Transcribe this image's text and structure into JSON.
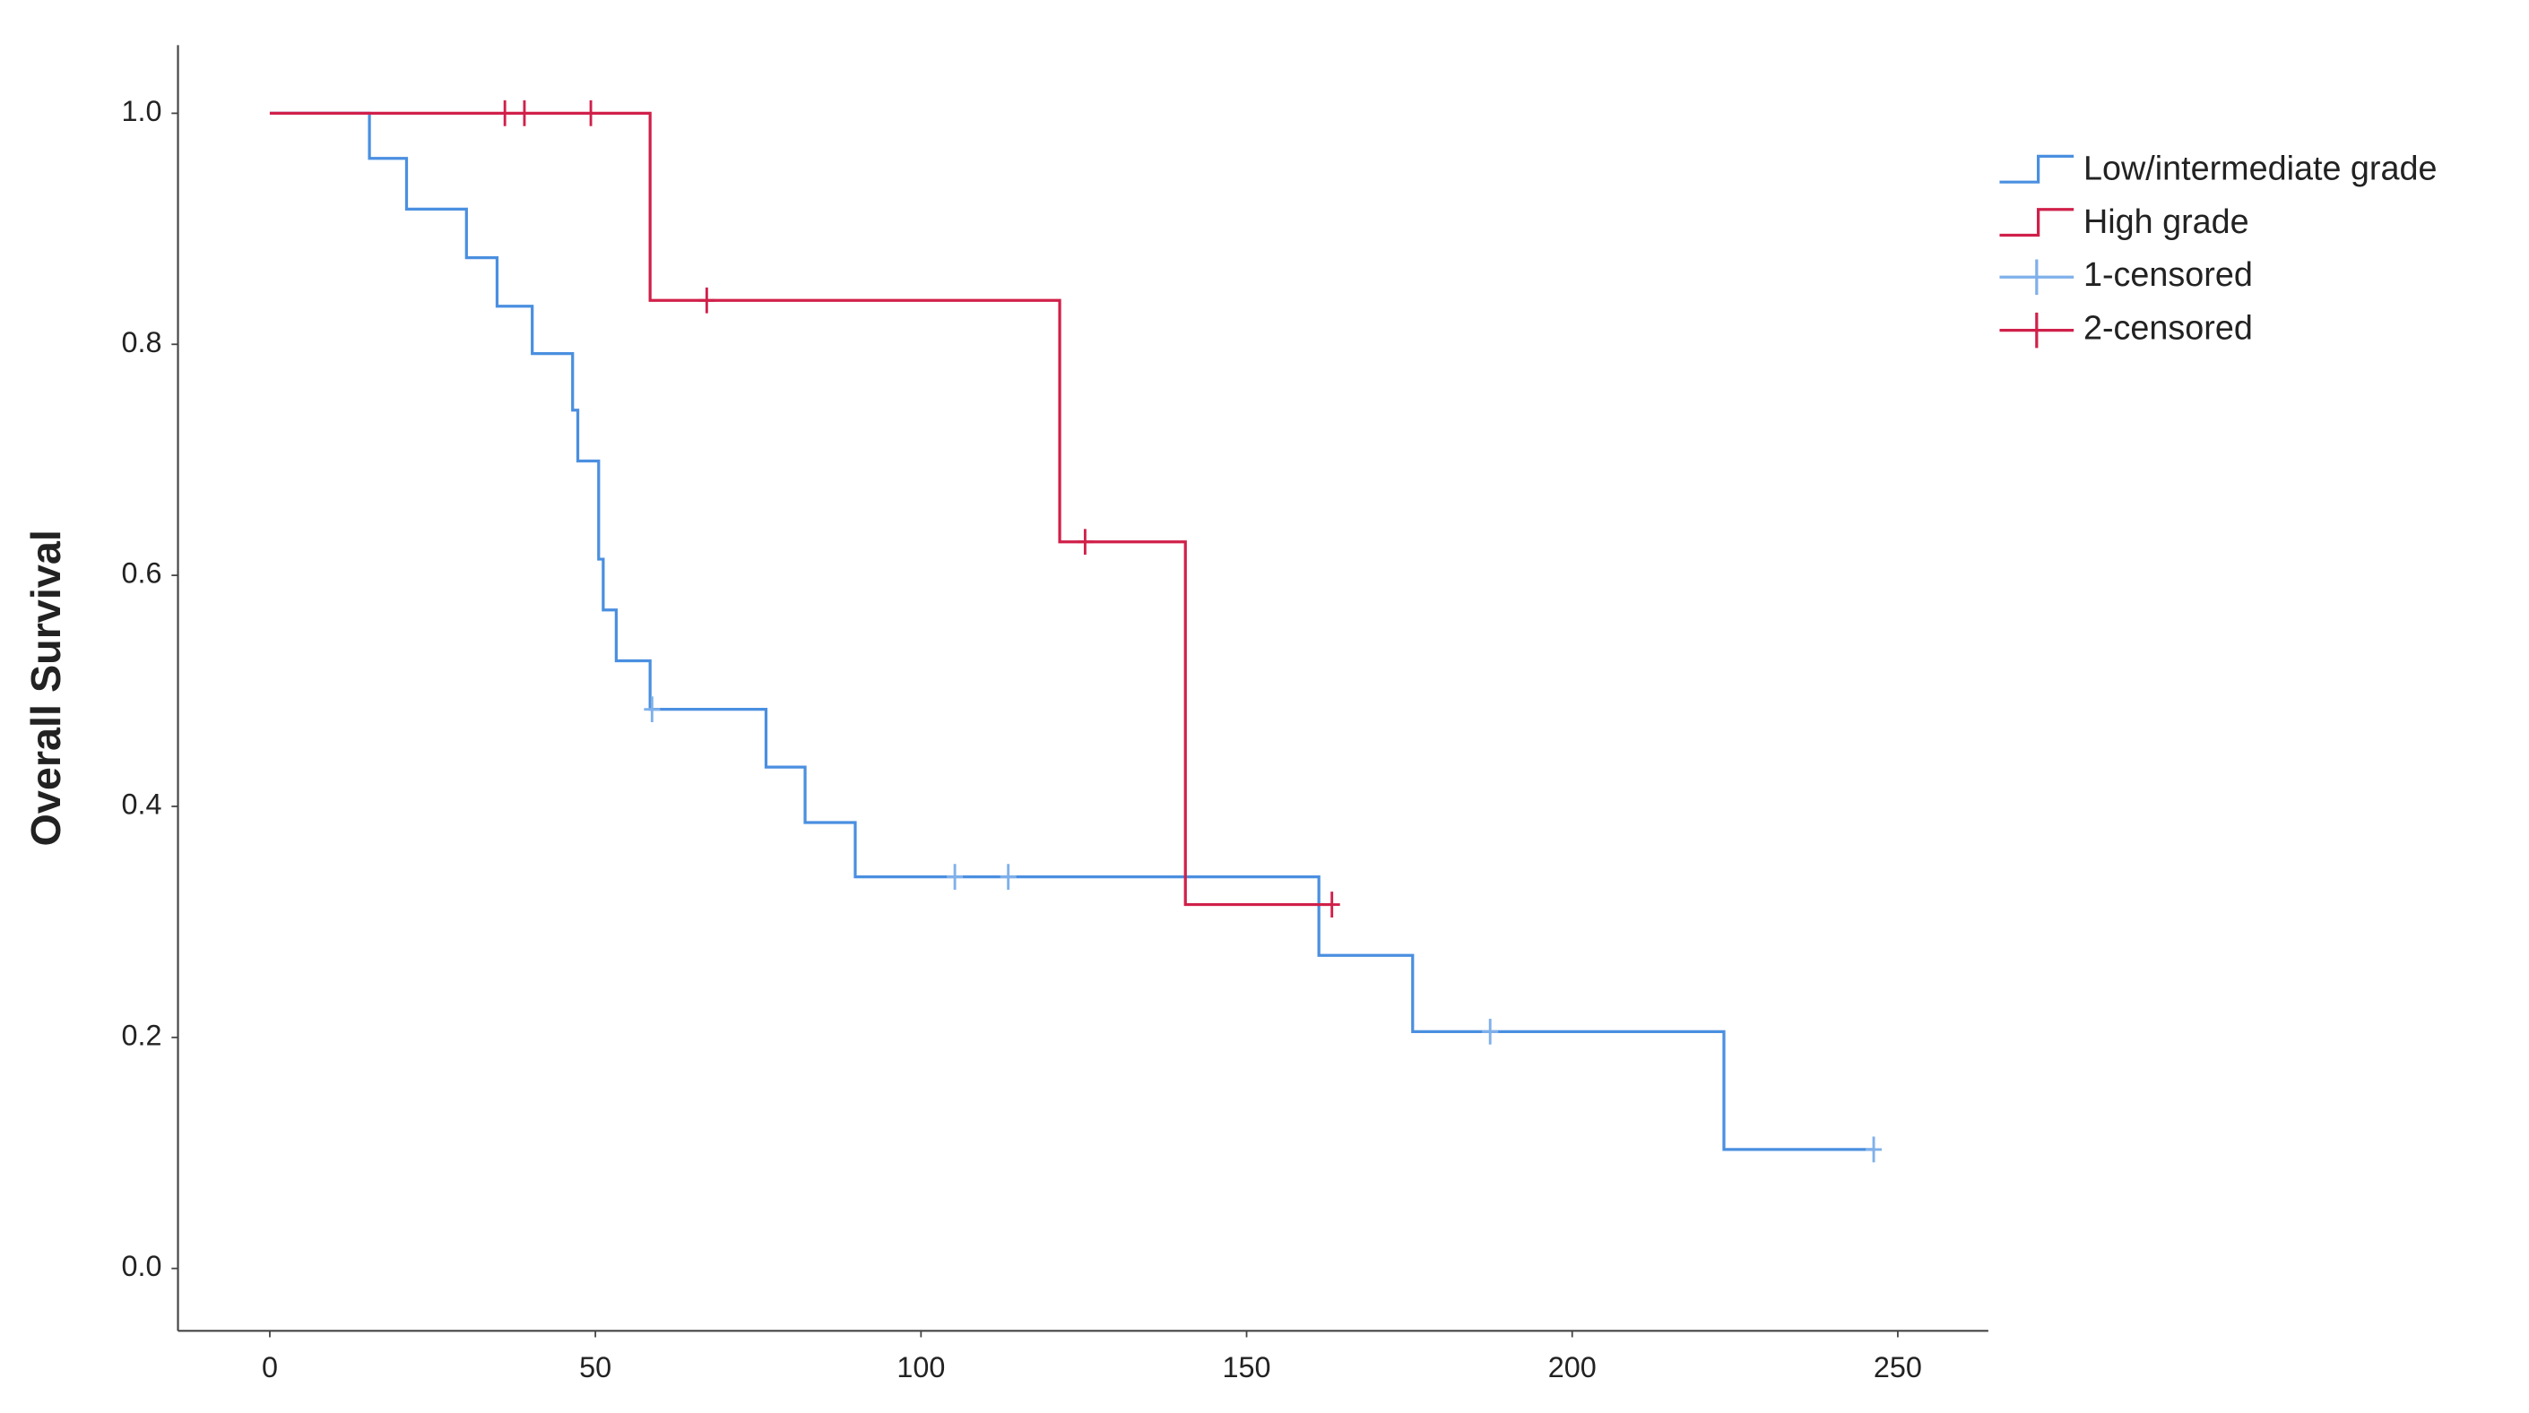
{
  "chart_data": {
    "type": "step",
    "ylabel": "Overall Survival",
    "xlim": [
      -14.1,
      263.9
    ],
    "ylim": [
      -0.054,
      1.059
    ],
    "xticks": [
      0,
      50,
      100,
      150,
      200,
      250
    ],
    "yticks": [
      {
        "value": 0,
        "label": "0.0"
      },
      0.2,
      0.4,
      0.6,
      0.8,
      {
        "value": 1,
        "label": "1.0"
      }
    ],
    "grid": false,
    "legend": "right",
    "series": [
      {
        "name": "Low/intermediate grade",
        "color": "#4a8fe0",
        "style": "step",
        "x": [
          0,
          15.3,
          21,
          30.2,
          34.9,
          40.3,
          46.5,
          47.3,
          50.5,
          51.2,
          53.2,
          58.4,
          76.2,
          82.2,
          89.9,
          161.1,
          175.5,
          223.3,
          246.3
        ],
        "values": [
          1,
          0.961,
          0.917,
          0.875,
          0.833,
          0.792,
          0.743,
          0.699,
          0.614,
          0.57,
          0.526,
          0.484,
          0.434,
          0.386,
          0.339,
          0.271,
          0.205,
          0.103,
          0.103
        ]
      },
      {
        "name": "High grade",
        "color": "#d0204a",
        "style": "step",
        "x": [
          0,
          58.4,
          121.3,
          140.6,
          163.1
        ],
        "values": [
          1,
          0.838,
          0.629,
          0.315,
          0.315
        ]
      },
      {
        "name": "1-censored",
        "color": "#7fb0ea",
        "style": "censor",
        "x": [
          58.7,
          105.2,
          113.4,
          187.4,
          246.3
        ],
        "values": [
          0.484,
          0.339,
          0.339,
          0.205,
          0.103
        ]
      },
      {
        "name": "2-censored",
        "color": "#d0204a",
        "style": "censor",
        "x": [
          36.1,
          39.1,
          49.3,
          67.1,
          125.2,
          163.1
        ],
        "values": [
          1,
          1,
          1,
          0.838,
          0.629,
          0.315
        ]
      }
    ]
  }
}
